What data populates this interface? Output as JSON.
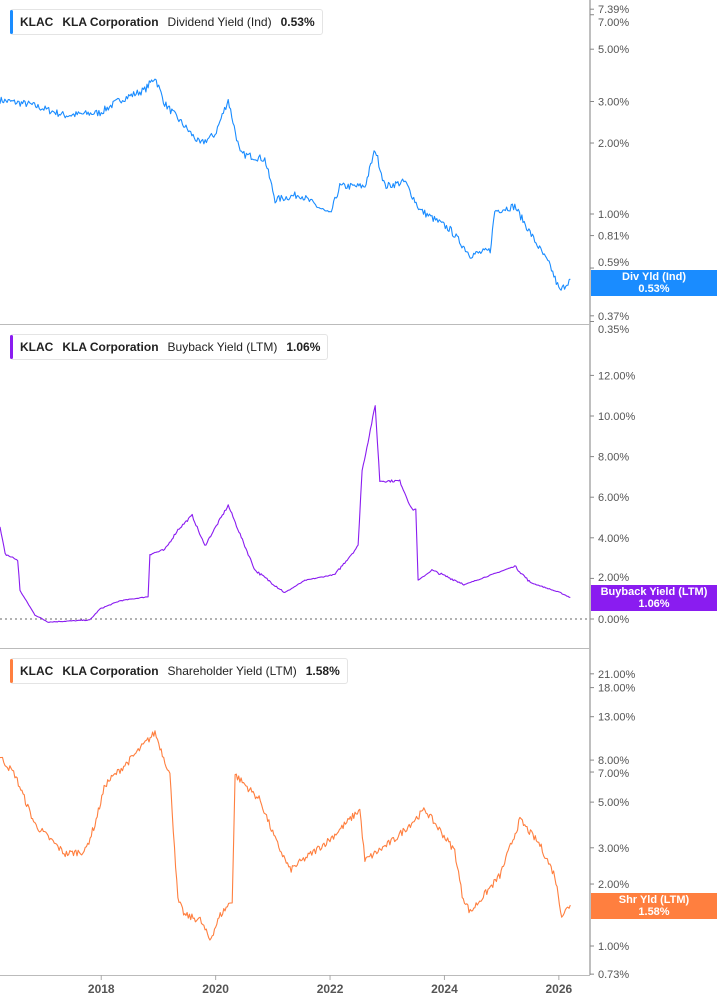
{
  "chart_data": [
    {
      "type": "line",
      "scale": "log",
      "ticker": "KLAC",
      "company": "KLA Corporation",
      "metric": "Dividend Yield (Ind)",
      "current": "0.53%",
      "tag_label": "Div Yld (Ind)",
      "color": "#1a8cff",
      "yticks": [
        "7.39%",
        "7.00%",
        "5.00%",
        "3.00%",
        "2.00%",
        "1.00%",
        "0.81%",
        "0.59%",
        "0.37%",
        "0.35%"
      ],
      "ytick_values": [
        7.39,
        7.0,
        5.0,
        3.0,
        2.0,
        1.0,
        0.81,
        0.59,
        0.37,
        0.35
      ],
      "x": [
        2016.23,
        2016.75,
        2017.37,
        2017.98,
        2018.33,
        2018.76,
        2018.94,
        2019.11,
        2019.73,
        2019.99,
        2020.22,
        2020.43,
        2020.86,
        2021.04,
        2021.47,
        2022.0,
        2022.17,
        2022.61,
        2022.79,
        2022.96,
        2023.31,
        2023.57,
        2024.1,
        2024.45,
        2024.8,
        2024.88,
        2025.23,
        2025.58,
        2025.85,
        2026.02,
        2026.2
      ],
      "y": [
        3.04,
        2.92,
        2.62,
        2.69,
        3.05,
        3.36,
        3.81,
        2.94,
        1.98,
        2.18,
        3.05,
        1.8,
        1.71,
        1.15,
        1.21,
        0.99,
        1.31,
        1.31,
        1.88,
        1.31,
        1.37,
        1.04,
        0.86,
        0.67,
        0.7,
        1.03,
        1.08,
        0.77,
        0.6,
        0.47,
        0.53
      ]
    },
    {
      "type": "line",
      "scale": "linear",
      "ticker": "KLAC",
      "company": "KLA Corporation",
      "metric": "Buyback Yield (LTM)",
      "current": "1.06%",
      "tag_label": "Buyback Yield (LTM)",
      "color": "#8a1cf0",
      "yticks": [
        "12.00%",
        "10.00%",
        "8.00%",
        "6.00%",
        "4.00%",
        "2.00%",
        "0.00%"
      ],
      "ytick_values": [
        12,
        10,
        8,
        6,
        4,
        2,
        0
      ],
      "x": [
        2016.23,
        2016.32,
        2016.54,
        2016.58,
        2016.84,
        2017.07,
        2017.8,
        2017.98,
        2018.33,
        2018.82,
        2018.85,
        2019.11,
        2019.34,
        2019.59,
        2019.81,
        2020.22,
        2020.51,
        2020.69,
        2021.21,
        2021.56,
        2022.09,
        2022.49,
        2022.56,
        2022.79,
        2022.87,
        2023.22,
        2023.43,
        2023.5,
        2023.54,
        2023.78,
        2024.36,
        2025.23,
        2025.5,
        2026.02,
        2026.2
      ],
      "y": [
        4.5,
        3.2,
        2.9,
        1.4,
        0.2,
        -0.15,
        -0.05,
        0.5,
        0.9,
        1.1,
        3.2,
        3.4,
        4.4,
        5.1,
        3.6,
        5.6,
        3.6,
        2.4,
        1.3,
        1.9,
        2.2,
        3.6,
        7.3,
        10.5,
        6.8,
        6.8,
        5.4,
        5.4,
        1.9,
        2.4,
        1.7,
        2.6,
        1.8,
        1.3,
        1.06
      ]
    },
    {
      "type": "line",
      "scale": "log",
      "ticker": "KLAC",
      "company": "KLA Corporation",
      "metric": "Shareholder Yield (LTM)",
      "current": "1.58%",
      "tag_label": "Shr Yld (LTM)",
      "color": "#ff7f3f",
      "yticks": [
        "21.00%",
        "18.00%",
        "13.00%",
        "8.00%",
        "7.00%",
        "5.00%",
        "3.00%",
        "2.00%",
        "1.00%",
        "0.73%"
      ],
      "ytick_values": [
        21,
        18,
        13,
        8,
        7,
        5,
        3,
        2,
        1,
        0.73
      ],
      "x": [
        2016.23,
        2016.49,
        2016.84,
        2017.37,
        2017.72,
        2017.89,
        2018.07,
        2018.5,
        2018.94,
        2019.2,
        2019.34,
        2019.46,
        2019.73,
        2019.9,
        2020.08,
        2020.29,
        2020.34,
        2020.78,
        2021.04,
        2021.3,
        2022.0,
        2022.52,
        2022.61,
        2023.13,
        2023.66,
        2024.18,
        2024.31,
        2024.45,
        2024.97,
        2025.32,
        2025.67,
        2025.93,
        2026.05,
        2026.2
      ],
      "y": [
        8.3,
        6.8,
        3.9,
        2.8,
        2.9,
        3.9,
        6.1,
        8.0,
        10.9,
        6.8,
        1.67,
        1.41,
        1.34,
        1.07,
        1.41,
        1.67,
        6.8,
        5.1,
        3.3,
        2.34,
        3.3,
        4.6,
        2.6,
        3.3,
        4.6,
        2.9,
        1.77,
        1.46,
        2.2,
        4.1,
        3.1,
        2.2,
        1.41,
        1.58
      ]
    }
  ],
  "x_axis": {
    "ticks": [
      "2018",
      "2020",
      "2022",
      "2024",
      "2026"
    ],
    "tick_values": [
      2018,
      2020,
      2022,
      2024,
      2026
    ]
  }
}
